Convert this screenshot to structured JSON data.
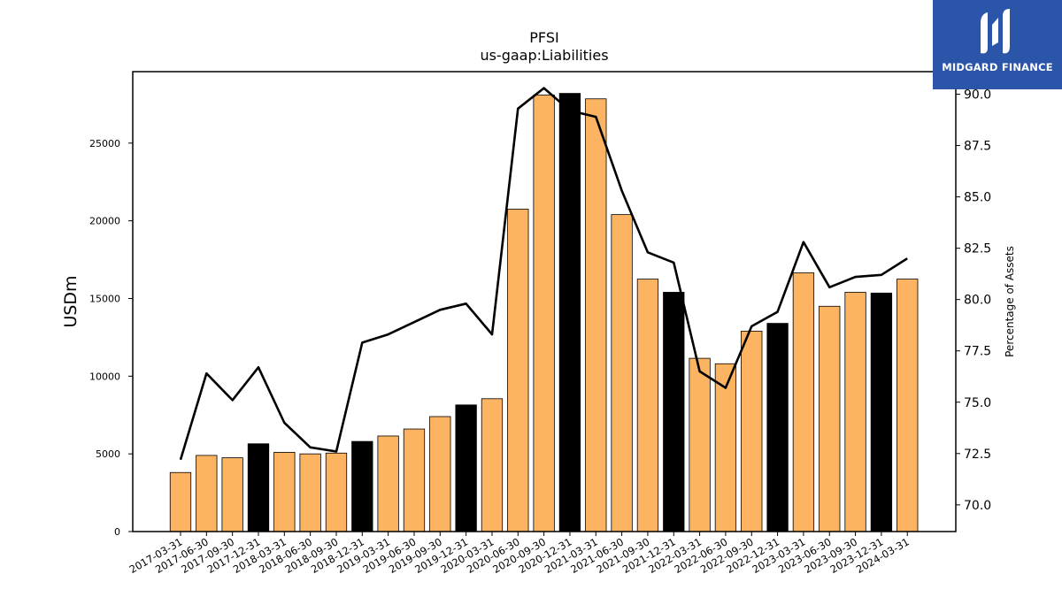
{
  "brand": {
    "name": "MIDGARD FINANCE",
    "bg_color": "#2b55a8"
  },
  "chart_data": {
    "type": "bar+line",
    "title": "PFSI",
    "subtitle": "us-gaap:Liabilities",
    "ylabel_left": "USDm",
    "ylabel_right": "Percentage of Assets",
    "categories": [
      "2017-03-31",
      "2017-06-30",
      "2017-09-30",
      "2017-12-31",
      "2018-03-31",
      "2018-06-30",
      "2018-09-30",
      "2018-12-31",
      "2019-03-31",
      "2019-06-30",
      "2019-09-30",
      "2019-12-31",
      "2020-03-31",
      "2020-06-30",
      "2020-09-30",
      "2020-12-31",
      "2021-03-31",
      "2021-06-30",
      "2021-09-30",
      "2021-12-31",
      "2022-03-31",
      "2022-06-30",
      "2022-09-30",
      "2022-12-31",
      "2023-03-31",
      "2023-06-30",
      "2023-09-30",
      "2023-12-31",
      "2024-03-31"
    ],
    "bar_values": [
      3800,
      4900,
      4750,
      5650,
      5100,
      5000,
      5050,
      5800,
      6150,
      6600,
      7400,
      8150,
      8550,
      20750,
      28100,
      28200,
      27850,
      20400,
      16250,
      15400,
      11150,
      10800,
      12900,
      13400,
      16650,
      14500,
      15400,
      15350,
      16250
    ],
    "bar_highlight": [
      false,
      false,
      false,
      true,
      false,
      false,
      false,
      true,
      false,
      false,
      false,
      true,
      false,
      false,
      false,
      true,
      false,
      false,
      false,
      true,
      false,
      false,
      false,
      true,
      false,
      false,
      false,
      true,
      false
    ],
    "line_values": [
      72.2,
      76.4,
      75.1,
      76.7,
      74.0,
      72.8,
      72.6,
      77.9,
      78.3,
      78.9,
      79.5,
      79.8,
      78.3,
      89.3,
      90.3,
      89.2,
      88.9,
      85.3,
      82.3,
      81.8,
      76.5,
      75.7,
      78.7,
      79.4,
      82.8,
      80.6,
      81.1,
      81.2,
      82.0
    ],
    "ylim_left": [
      0,
      29600
    ],
    "yticks_left": [
      0,
      5000,
      10000,
      15000,
      20000,
      25000
    ],
    "ylim_right": [
      68.7,
      91.1
    ],
    "yticks_right": [
      70.0,
      72.5,
      75.0,
      77.5,
      80.0,
      82.5,
      85.0,
      87.5,
      90.0
    ],
    "colors": {
      "bar": "#fdb462",
      "bar_highlight": "#000000",
      "line": "#000000"
    }
  }
}
